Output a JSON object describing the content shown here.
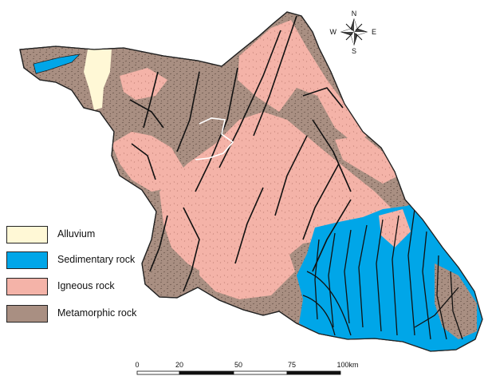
{
  "map": {
    "colors": {
      "alluvium": "#fff8d6",
      "sedimentary": "#00a6e8",
      "igneous": "#f4b3a8",
      "metamorphic": "#a98f82",
      "outline": "#222222",
      "fault": "#111111",
      "river": "#ffffff"
    }
  },
  "compass": {
    "north": "N",
    "south": "S",
    "east": "E",
    "west": "W"
  },
  "legend": {
    "items": [
      {
        "label": "Alluvium",
        "color": "#fff8d6"
      },
      {
        "label": "Sedimentary rock",
        "color": "#00a6e8"
      },
      {
        "label": "Igneous rock",
        "color": "#f4b3a8"
      },
      {
        "label": "Metamorphic rock",
        "color": "#a98f82"
      }
    ]
  },
  "scale_bar": {
    "ticks": [
      "0",
      "20",
      "50",
      "75",
      "100km"
    ]
  }
}
